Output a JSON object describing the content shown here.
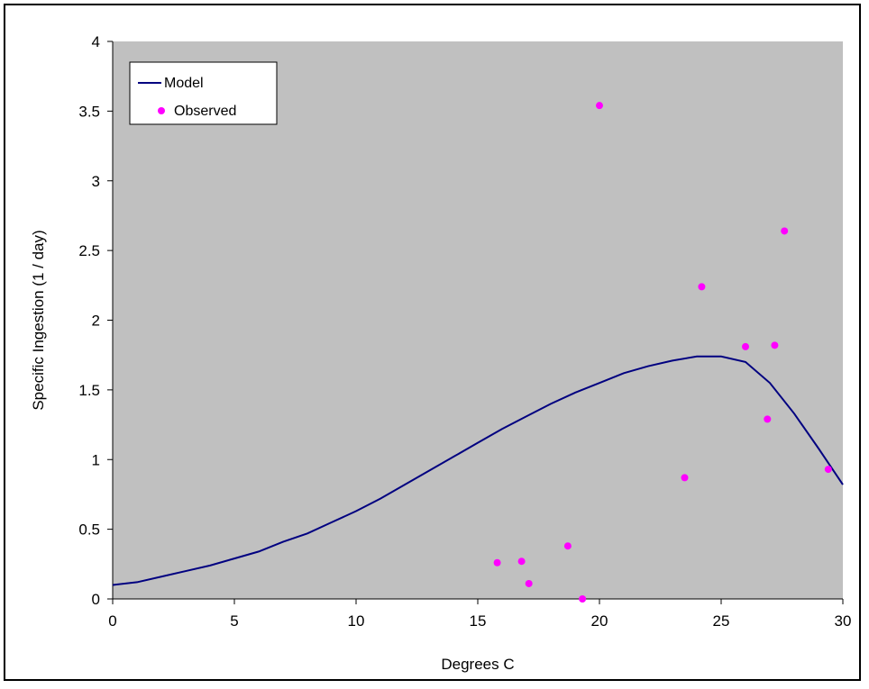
{
  "chart_data": {
    "type": "line",
    "xlabel": "Degrees C",
    "ylabel": "Specific Ingestion (1 / day)",
    "xlim": [
      0,
      30
    ],
    "ylim": [
      0,
      4
    ],
    "xticks": [
      0,
      5,
      10,
      15,
      20,
      25,
      30
    ],
    "yticks": [
      0,
      0.5,
      1,
      1.5,
      2,
      2.5,
      3,
      3.5,
      4
    ],
    "ytick_labels": [
      "0",
      "0.5",
      "1",
      "1.5",
      "2",
      "2.5",
      "3",
      "3.5",
      "4"
    ],
    "grid": false,
    "plot_background": "#c0c0c0",
    "legend": {
      "position": "top-left"
    },
    "series": [
      {
        "name": "Model",
        "kind": "line",
        "color": "#000080",
        "x": [
          0,
          1,
          2,
          3,
          4,
          5,
          6,
          7,
          8,
          9,
          10,
          11,
          12,
          13,
          14,
          15,
          16,
          17,
          18,
          19,
          20,
          21,
          22,
          23,
          24,
          25,
          26,
          27,
          28,
          29,
          30
        ],
        "y": [
          0.1,
          0.12,
          0.16,
          0.2,
          0.24,
          0.29,
          0.34,
          0.41,
          0.47,
          0.55,
          0.63,
          0.72,
          0.82,
          0.92,
          1.02,
          1.12,
          1.22,
          1.31,
          1.4,
          1.48,
          1.55,
          1.62,
          1.67,
          1.71,
          1.74,
          1.74,
          1.7,
          1.55,
          1.33,
          1.08,
          0.82
        ]
      },
      {
        "name": "Observed",
        "kind": "scatter",
        "color": "#ff00ff",
        "x": [
          15.8,
          16.8,
          17.1,
          18.7,
          19.3,
          20.0,
          23.5,
          24.2,
          26.0,
          26.9,
          27.2,
          27.6,
          29.4
        ],
        "y": [
          0.26,
          0.27,
          0.11,
          0.38,
          0.0,
          3.54,
          0.87,
          2.24,
          1.81,
          1.29,
          1.82,
          2.64,
          0.93
        ]
      }
    ]
  }
}
